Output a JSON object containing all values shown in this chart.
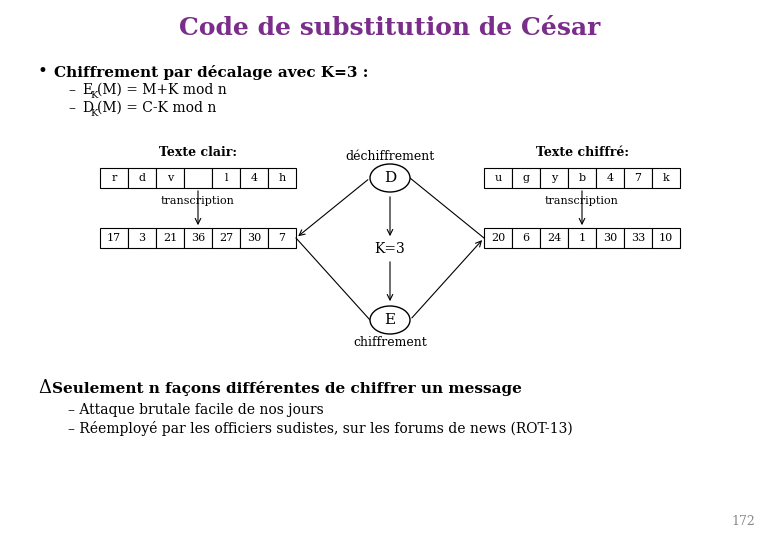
{
  "title": "Code de substitution de César",
  "title_color": "#7B2D8B",
  "title_fontsize": 18,
  "bg_color": "#FFFFFF",
  "bullet1": "Chiffrement par décalage avec K=3 :",
  "sub1a_letter": "E",
  "sub1a_sub": "K",
  "sub1a_rest": "(M) = M+K mod n",
  "sub1b_letter": "D",
  "sub1b_sub": "K",
  "sub1b_rest": "(M) = C-K mod n",
  "plain_letters": [
    "r",
    "d",
    "v",
    " ",
    "l",
    "4",
    "h"
  ],
  "plain_numbers": [
    "17",
    "3",
    "21",
    "36",
    "27",
    "30",
    "7"
  ],
  "cipher_letters": [
    "u",
    "g",
    "y",
    "b",
    "4",
    "7",
    "k"
  ],
  "cipher_numbers": [
    "20",
    "6",
    "24",
    "1",
    "30",
    "33",
    "10"
  ],
  "label_plain": "Texte clair:",
  "label_cipher": "Texte chiffré:",
  "label_transcription": "transcription",
  "label_dechiffrement": "déchiffrement",
  "label_chiffrement": "chiffrement",
  "label_K3": "K=3",
  "label_D": "D",
  "label_E": "E",
  "delta_bullet": "Δ",
  "bullet2": "Seulement n façons différentes de chiffrer un message",
  "sub2a": "– Attaque brutale facile de nos jours",
  "sub2b": "– Réemployé par les officiers sudistes, sur les forums de news (ROT-13)",
  "page_num": "172",
  "text_color": "#000000",
  "gray_color": "#888888"
}
